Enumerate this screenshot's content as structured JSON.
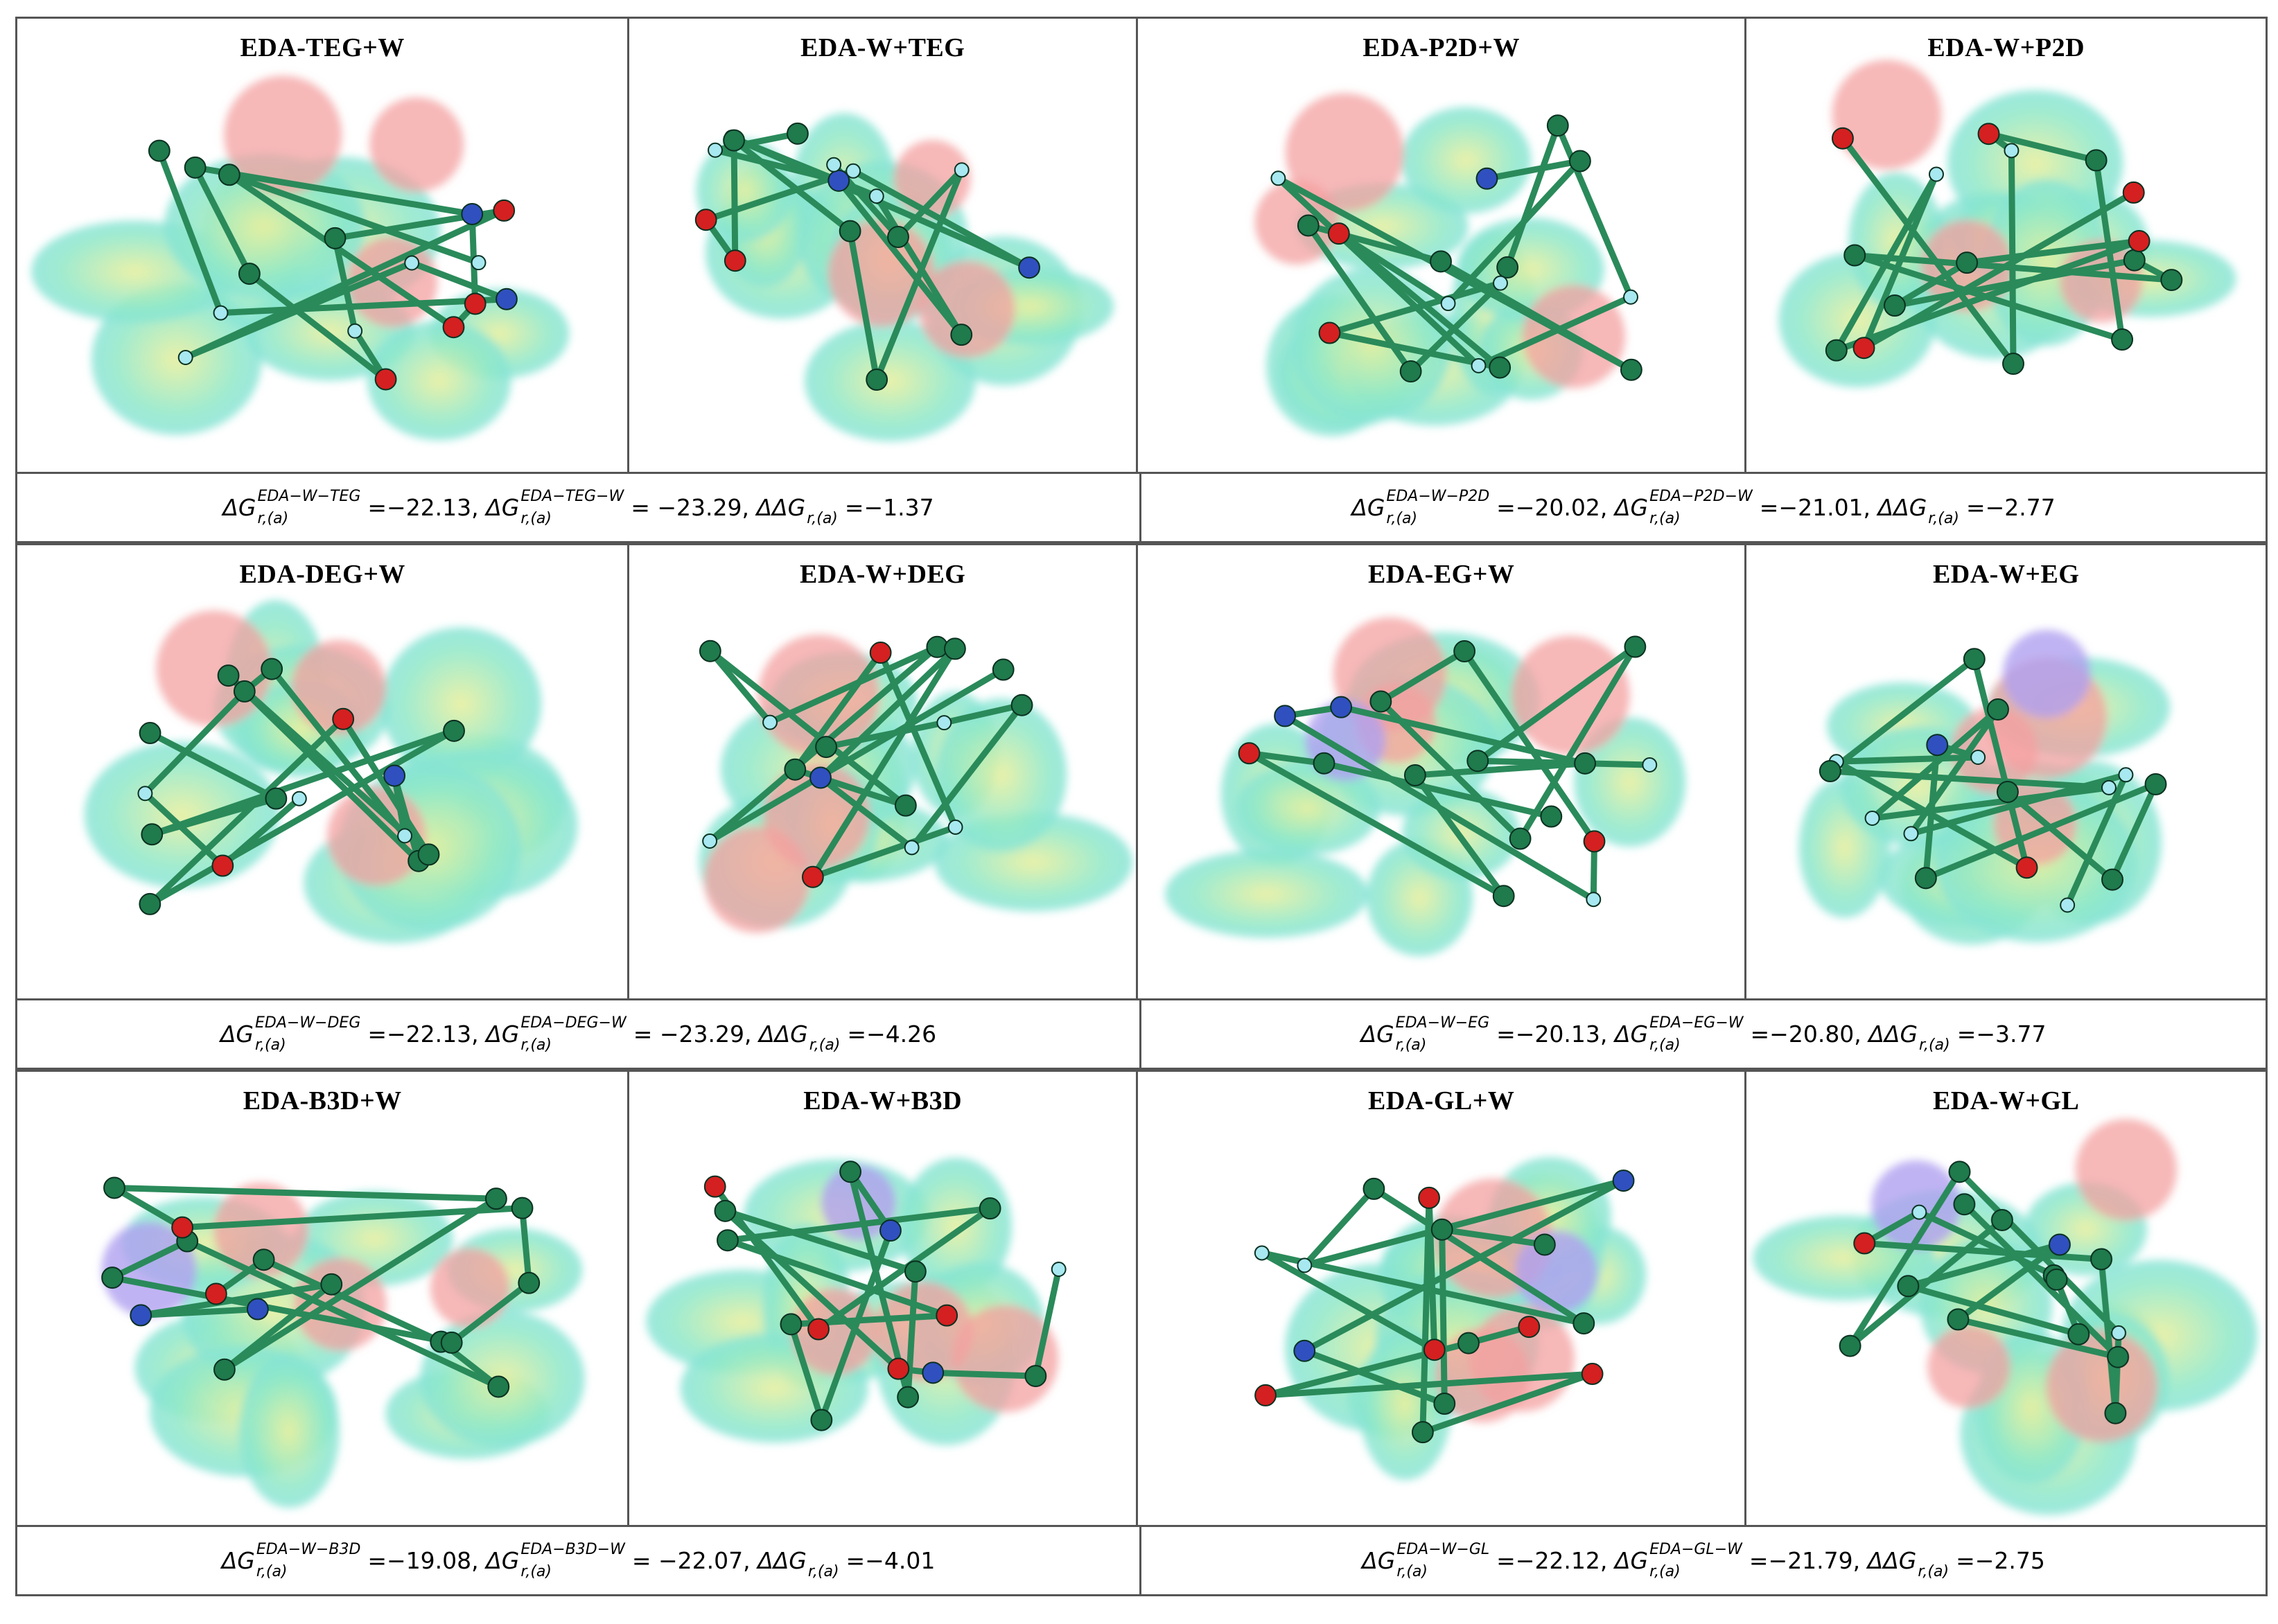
{
  "rows": [
    {
      "panels": [
        "EDA-TEG+W",
        "EDA-W+TEG",
        "EDA-P2D+W",
        "EDA-W+P2D"
      ],
      "equations": [
        {
          "sup1": "EDA−W−TEG",
          "v1": "=−22.13,",
          "sup2": "EDA−TEG−W",
          "v2": "= −23.29,",
          "v3": "=−1.37"
        },
        {
          "sup1": "EDA−W−P2D",
          "v1": "=−20.02,",
          "sup2": "EDA−P2D−W",
          "v2": "=−21.01,",
          "v3": "=−2.77"
        }
      ]
    },
    {
      "panels": [
        "EDA-DEG+W",
        "EDA-W+DEG",
        "EDA-EG+W",
        "EDA-W+EG"
      ],
      "equations": [
        {
          "sup1": "EDA−W−DEG",
          "v1": "=−22.13,",
          "sup2": "EDA−DEG−W",
          "v2": "= −23.29,",
          "v3": "=−4.26"
        },
        {
          "sup1": "EDA−W−EG",
          "v1": "=−20.13,",
          "sup2": "EDA−EG−W",
          "v2": "=−20.80,",
          "v3": "=−3.77"
        }
      ]
    },
    {
      "panels": [
        "EDA-B3D+W",
        "EDA-W+B3D",
        "EDA-GL+W",
        "EDA-W+GL"
      ],
      "equations": [
        {
          "sup1": "EDA−W−B3D",
          "v1": "=−19.08,",
          "sup2": "EDA−B3D−W",
          "v2": "= −22.07,",
          "v3": "=−4.01"
        },
        {
          "sup1": "EDA−W−GL",
          "v1": "=−22.12,",
          "sup2": "EDA−GL−W",
          "v2": "=−21.79,",
          "v3": "=−2.75"
        }
      ]
    }
  ],
  "symbols": {
    "dG": "ΔG",
    "ddG": "ΔΔG",
    "sub": "r,(a)"
  },
  "colors": {
    "surface_neutral": "#8fe8c8",
    "surface_negative": "#f4a0a0",
    "surface_positive": "#b0a0f0",
    "carbon": "#1f7a4c",
    "oxygen": "#d42020",
    "nitrogen": "#3050c0",
    "hydrogen": "#a8e8f0"
  }
}
